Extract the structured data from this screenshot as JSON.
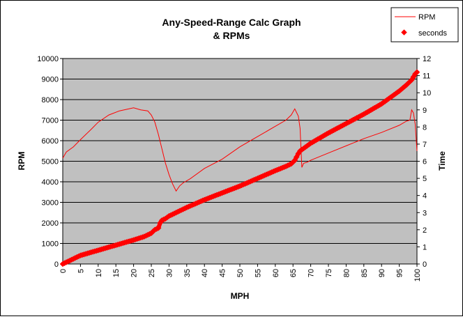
{
  "chart_data": {
    "type": "line",
    "title_lines": [
      "Any-Speed-Range Calc Graph",
      "& RPMs"
    ],
    "xlabel": "MPH",
    "ylabel": "RPM",
    "y2label": "Time",
    "xlim": [
      0,
      100
    ],
    "ylim": [
      0,
      10000
    ],
    "y2lim": [
      0,
      12
    ],
    "x_ticks": [
      "0",
      "5",
      "10",
      "15",
      "20",
      "25",
      "30",
      "35",
      "40",
      "45",
      "50",
      "55",
      "60",
      "65",
      "70",
      "75",
      "80",
      "85",
      "90",
      "95",
      "100"
    ],
    "y_ticks": [
      "0",
      "1000",
      "2000",
      "3000",
      "4000",
      "5000",
      "6000",
      "7000",
      "8000",
      "9000",
      "10000"
    ],
    "y2_ticks": [
      "0",
      "1",
      "2",
      "3",
      "4",
      "5",
      "6",
      "7",
      "8",
      "9",
      "10",
      "11",
      "12"
    ],
    "gridlines": "horizontal",
    "legend_position": "top-right",
    "colors": {
      "series": "#ff0000",
      "plot_bg": "#c0c0c0",
      "grid": "#000000"
    },
    "series": [
      {
        "name": "RPM",
        "axis": "left",
        "style": "line",
        "x": [
          0,
          1,
          3,
          5,
          8,
          10,
          13,
          16,
          20,
          22,
          24,
          25,
          26,
          27,
          28,
          29,
          30,
          31,
          32,
          33,
          34,
          36,
          40,
          45,
          50,
          55,
          60,
          63,
          64.5,
          65.5,
          66.5,
          67,
          67.5,
          68,
          69,
          70,
          75,
          80,
          85,
          90,
          95,
          97,
          98,
          98.5,
          99,
          99.5,
          100
        ],
        "values": [
          5150,
          5450,
          5700,
          6050,
          6550,
          6900,
          7250,
          7450,
          7600,
          7500,
          7450,
          7250,
          6900,
          6300,
          5600,
          4900,
          4350,
          3900,
          3550,
          3800,
          3950,
          4150,
          4650,
          5100,
          5700,
          6200,
          6700,
          7000,
          7250,
          7550,
          7200,
          6600,
          4700,
          4900,
          4950,
          5050,
          5400,
          5750,
          6100,
          6400,
          6750,
          6950,
          7000,
          7500,
          7350,
          6800,
          5500
        ]
      },
      {
        "name": "seconds",
        "axis": "right",
        "style": "marker",
        "x": [
          0,
          5,
          10,
          15,
          20,
          23,
          25,
          26,
          27,
          27.5,
          28,
          29,
          30,
          35,
          40,
          45,
          50,
          55,
          60,
          63,
          64.5,
          65.5,
          66.5,
          67,
          70,
          75,
          80,
          85,
          90,
          95,
          97,
          98.5,
          99.5,
          100
        ],
        "values": [
          0,
          0.5,
          0.8,
          1.1,
          1.4,
          1.6,
          1.8,
          2.0,
          2.1,
          2.4,
          2.55,
          2.65,
          2.8,
          3.3,
          3.75,
          4.15,
          4.55,
          5.0,
          5.45,
          5.7,
          5.85,
          6.05,
          6.45,
          6.6,
          7.05,
          7.65,
          8.2,
          8.75,
          9.35,
          10.1,
          10.45,
          10.75,
          11.1,
          11.2
        ]
      }
    ]
  }
}
